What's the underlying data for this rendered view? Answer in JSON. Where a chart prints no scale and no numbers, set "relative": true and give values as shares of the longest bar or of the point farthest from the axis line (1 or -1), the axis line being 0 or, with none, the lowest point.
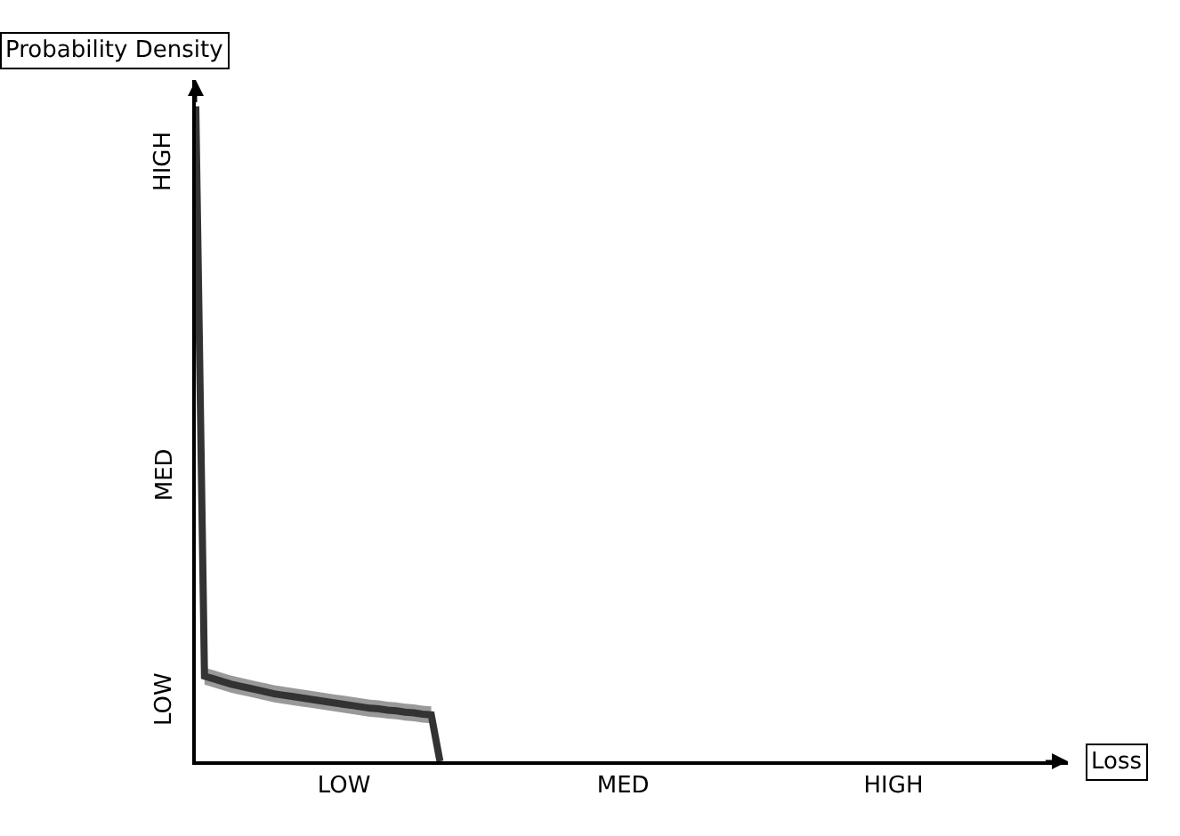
{
  "chart_data": {
    "type": "line",
    "relative": true,
    "xlabel": "Loss",
    "ylabel": "Probability Density",
    "annotations": [
      "LOW",
      "MED",
      "HIGH"
    ],
    "categories": [
      null,
      null,
      null,
      null,
      null,
      null,
      null,
      null,
      null,
      null,
      null,
      null,
      null,
      null,
      null,
      null,
      null,
      "LOW",
      null,
      null,
      null,
      null,
      null,
      null,
      null,
      null,
      null,
      null,
      null,
      null,
      null,
      null,
      null,
      null,
      null,
      null,
      null,
      null,
      null,
      null,
      null,
      null,
      null,
      null,
      null,
      null,
      null,
      null,
      null,
      "MED",
      null,
      null,
      null,
      null,
      null,
      null,
      null,
      null,
      null,
      null,
      null,
      null,
      null,
      null,
      null,
      null,
      null,
      null,
      null,
      null,
      null,
      null,
      null,
      null,
      null,
      null,
      null,
      null,
      null,
      null,
      "HIGH",
      null,
      null,
      null,
      null,
      null,
      null,
      null,
      null,
      null,
      null,
      null,
      null,
      null,
      null,
      null,
      null,
      null,
      null,
      null,
      null
    ],
    "series": [
      {
        "color": "#333333",
        "values": [
          1,
          0.13,
          0.126,
          0.122,
          0.118,
          0.115,
          0.112,
          0.109,
          0.106,
          0.103,
          0.101,
          0.099,
          0.097,
          0.095,
          0.093,
          0.091,
          0.089,
          0.087,
          0.085,
          0.083,
          0.081,
          0.08,
          0.078,
          0.077,
          0.075,
          0.074,
          0.072,
          0.071,
          0,
          null,
          null,
          null,
          null,
          null,
          null,
          null,
          null,
          null,
          null,
          null,
          null,
          null,
          null,
          null,
          null,
          null,
          null,
          null,
          null,
          null,
          null,
          null,
          null,
          null,
          null,
          null,
          null,
          null,
          null,
          null,
          null,
          null,
          null,
          null,
          null,
          null,
          null,
          null,
          null,
          null,
          null,
          null,
          null,
          null,
          null,
          null,
          null,
          null,
          null,
          null,
          null,
          null,
          null,
          null,
          null,
          null,
          null,
          null,
          null,
          null,
          null,
          null,
          null,
          null,
          null,
          null,
          null,
          null,
          null,
          null,
          null
        ],
        "lower": [
          null,
          0.117,
          0.113,
          0.109,
          0.105,
          0.102,
          0.099,
          0.096,
          0.093,
          0.09,
          0.088,
          0.086,
          0.084,
          0.082,
          0.08,
          0.078,
          0.076,
          0.074,
          0.072,
          0.07,
          0.068,
          0.067,
          0.065,
          0.064,
          0.062,
          0.061,
          0.059,
          0.058,
          null,
          null,
          null,
          null,
          null,
          null,
          null,
          null,
          null,
          null,
          null,
          null,
          null,
          null,
          null,
          null,
          null,
          null,
          null,
          null,
          null,
          null,
          null,
          null,
          null,
          null,
          null,
          null,
          null,
          null,
          null,
          null,
          null,
          null,
          null,
          null,
          null,
          null,
          null,
          null,
          null,
          null,
          null,
          null,
          null,
          null,
          null,
          null,
          null,
          null,
          null,
          null,
          null,
          null,
          null,
          null,
          null,
          null,
          null,
          null,
          null,
          null,
          null,
          null,
          null,
          null,
          null,
          null,
          null,
          null,
          null,
          null,
          null
        ],
        "upper": [
          null,
          0.143,
          0.139,
          0.135,
          0.131,
          0.128,
          0.125,
          0.122,
          0.119,
          0.116,
          0.114,
          0.112,
          0.11,
          0.108,
          0.106,
          0.104,
          0.102,
          0.1,
          0.098,
          0.096,
          0.094,
          0.093,
          0.091,
          0.09,
          0.088,
          0.087,
          0.085,
          0.084,
          null,
          null,
          null,
          null,
          null,
          null,
          null,
          null,
          null,
          null,
          null,
          null,
          null,
          null,
          null,
          null,
          null,
          null,
          null,
          null,
          null,
          null,
          null,
          null,
          null,
          null,
          null,
          null,
          null,
          null,
          null,
          null,
          null,
          null,
          null,
          null,
          null,
          null,
          null,
          null,
          null,
          null,
          null,
          null,
          null,
          null,
          null,
          null,
          null,
          null,
          null,
          null,
          null,
          null,
          null,
          null,
          null,
          null,
          null,
          null,
          null,
          null,
          null,
          null,
          null,
          null,
          null,
          null,
          null,
          null,
          null,
          null,
          null
        ]
      }
    ],
    "marker": "none",
    "line_style": "solid"
  }
}
